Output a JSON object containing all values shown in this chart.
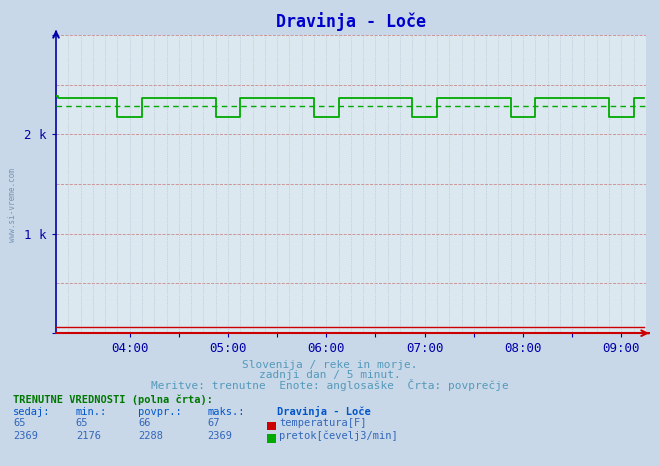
{
  "title": "Dravinja - Loče",
  "title_color": "#0000cc",
  "bg_color": "#c8d8e8",
  "plot_bg_color": "#dce8f0",
  "flow_color": "#00aa00",
  "temp_color": "#cc0000",
  "avg_color": "#00aa00",
  "axis_color": "#0000aa",
  "grid_red_color": "#cc8888",
  "grid_blue_color": "#aabbcc",
  "xmin": 0,
  "xmax": 288,
  "ymin": 0,
  "ymax": 3000,
  "avg_value": 2288,
  "flow_high": 2369,
  "flow_low": 2176,
  "xtick_positions": [
    36,
    60,
    84,
    108,
    132,
    156,
    180,
    204,
    228,
    252,
    276
  ],
  "xtick_labels": [
    "04:00",
    "",
    "05:00",
    "",
    "06:00",
    "",
    "07:00",
    "",
    "08:00",
    "",
    "09:00"
  ],
  "subtitle1": "Slovenija / reke in morje.",
  "subtitle2": "zadnji dan / 5 minut.",
  "subtitle3": "Meritve: trenutne  Enote: anglosaške  Črta: povprečje",
  "subtitle_color": "#5599bb",
  "table_header": "TRENUTNE VREDNOSTI (polna črta):",
  "table_cols": [
    "sedaj:",
    "min.:",
    "povpr.:",
    "maks.:"
  ],
  "table_row1": [
    "65",
    "65",
    "66",
    "67"
  ],
  "table_row2": [
    "2369",
    "2176",
    "2288",
    "2369"
  ],
  "station_name": "Dravinja - Loče",
  "label_temp": "temperatura[F]",
  "label_flow": "pretok[čevelj3/min]",
  "watermark": "www.si-vreme.com",
  "watermark_color": "#6688aa"
}
